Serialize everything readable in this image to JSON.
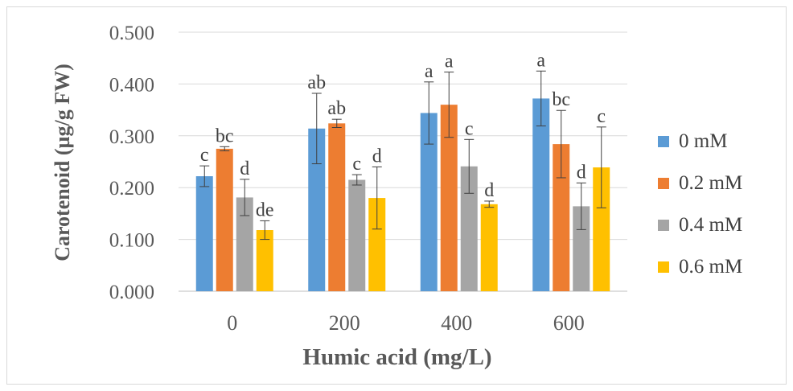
{
  "chart_data": {
    "type": "bar",
    "xlabel": "Humic acid (mg/L)",
    "ylabel": "Carotenoid (µg/g FW)",
    "ylim": [
      0,
      0.5
    ],
    "yticks": [
      "0.000",
      "0.100",
      "0.200",
      "0.300",
      "0.400",
      "0.500"
    ],
    "grid": "horizontal",
    "legend_position": "right",
    "categories": [
      "0",
      "200",
      "400",
      "600"
    ],
    "series": [
      {
        "name": "0 mM",
        "color": "#5b9bd5",
        "values": [
          0.222,
          0.314,
          0.344,
          0.372
        ],
        "errors": [
          0.02,
          0.068,
          0.06,
          0.053
        ],
        "labels": [
          "c",
          "ab",
          "a",
          "a"
        ]
      },
      {
        "name": "0.2 mM",
        "color": "#ed7d31",
        "values": [
          0.275,
          0.324,
          0.36,
          0.284
        ],
        "errors": [
          0.004,
          0.008,
          0.063,
          0.065
        ],
        "labels": [
          "bc",
          "ab",
          "a",
          "bc"
        ]
      },
      {
        "name": "0.4 mM",
        "color": "#a5a5a5",
        "values": [
          0.181,
          0.215,
          0.241,
          0.164
        ],
        "errors": [
          0.035,
          0.01,
          0.052,
          0.045
        ],
        "labels": [
          "d",
          "c",
          "c",
          "d"
        ]
      },
      {
        "name": "0.6 mM",
        "color": "#ffc000",
        "values": [
          0.118,
          0.18,
          0.168,
          0.239
        ],
        "errors": [
          0.018,
          0.06,
          0.006,
          0.078
        ],
        "labels": [
          "de",
          "d",
          "d",
          "c"
        ]
      }
    ]
  }
}
